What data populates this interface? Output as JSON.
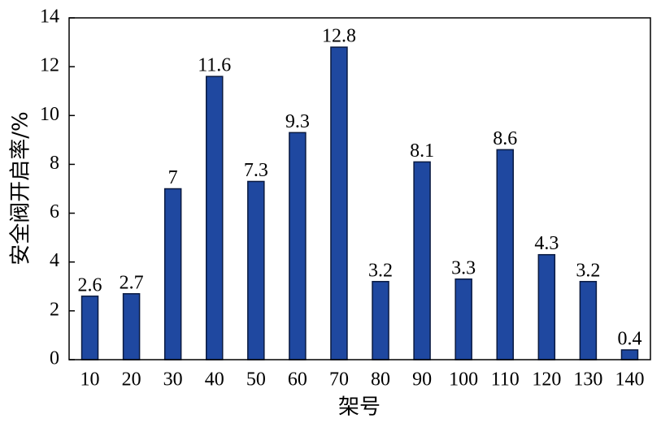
{
  "chart_data": {
    "type": "bar",
    "xlabel": "架号",
    "ylabel": "安全阀开启率/%",
    "categories": [
      10,
      20,
      30,
      40,
      50,
      60,
      70,
      80,
      90,
      100,
      110,
      120,
      130,
      140
    ],
    "values": [
      2.6,
      2.7,
      7,
      11.6,
      7.3,
      9.3,
      12.8,
      3.2,
      8.1,
      3.3,
      8.6,
      4.3,
      3.2,
      0.4
    ],
    "color": "#1f48a0",
    "ylim": [
      0,
      14
    ],
    "yticks": [
      0,
      2,
      4,
      6,
      8,
      10,
      12,
      14
    ]
  }
}
